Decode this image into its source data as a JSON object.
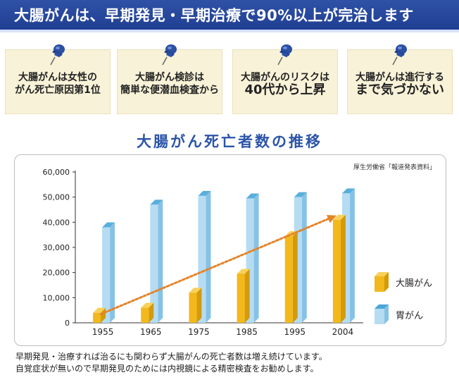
{
  "banner": {
    "title": "大腸がんは、早期発見・早期治療で90%以上が完治します"
  },
  "cards": [
    {
      "line1": "大腸がんは女性の",
      "line2": "がん死亡原因第1位"
    },
    {
      "line1": "大腸がん検診は",
      "line2": "簡単な便潜血検査から"
    },
    {
      "line1": "大腸がんのリスクは",
      "line2": "40代から上昇"
    },
    {
      "line1": "大腸がんは進行する",
      "line2": "まで気づかない"
    }
  ],
  "colors": {
    "banner": "#2345a0",
    "card_bg": "#f8f2d8",
    "pin": "#2b4fa3",
    "colorectal": "#f2b81c",
    "stomach": "#b6dcf2",
    "trend_arrow": "#e48428",
    "chart_title": "#2b54a8"
  },
  "chart_data": {
    "type": "bar",
    "title": "大腸がん死亡者数の推移",
    "source": "厚生労働省「報道発表資料」",
    "categories": [
      "1955",
      "1965",
      "1975",
      "1985",
      "1995",
      "2004"
    ],
    "series": [
      {
        "name": "大腸がん",
        "values": [
          4000,
          6000,
          12000,
          19500,
          34500,
          41000
        ]
      },
      {
        "name": "胃がん",
        "values": [
          38000,
          47000,
          50500,
          49500,
          50000,
          51500
        ]
      }
    ],
    "ylim": [
      0,
      60000
    ],
    "yticks": [
      "0",
      "10,000",
      "20,000",
      "30,000",
      "40,000",
      "50,000",
      "60,000"
    ],
    "xlabel": "",
    "ylabel": "",
    "grid": false,
    "legend_position": "right",
    "trend_arrow": {
      "from_category": "1955",
      "to_category": "2004",
      "series": "大腸がん"
    }
  },
  "footer": {
    "line1": "早期発見・治療すれば治るにも関わらず大腸がんの死亡者数は増え続けています。",
    "line2": "自覚症状が無いので早期発見のためには内視鏡による精密検査をお勧めします。"
  }
}
